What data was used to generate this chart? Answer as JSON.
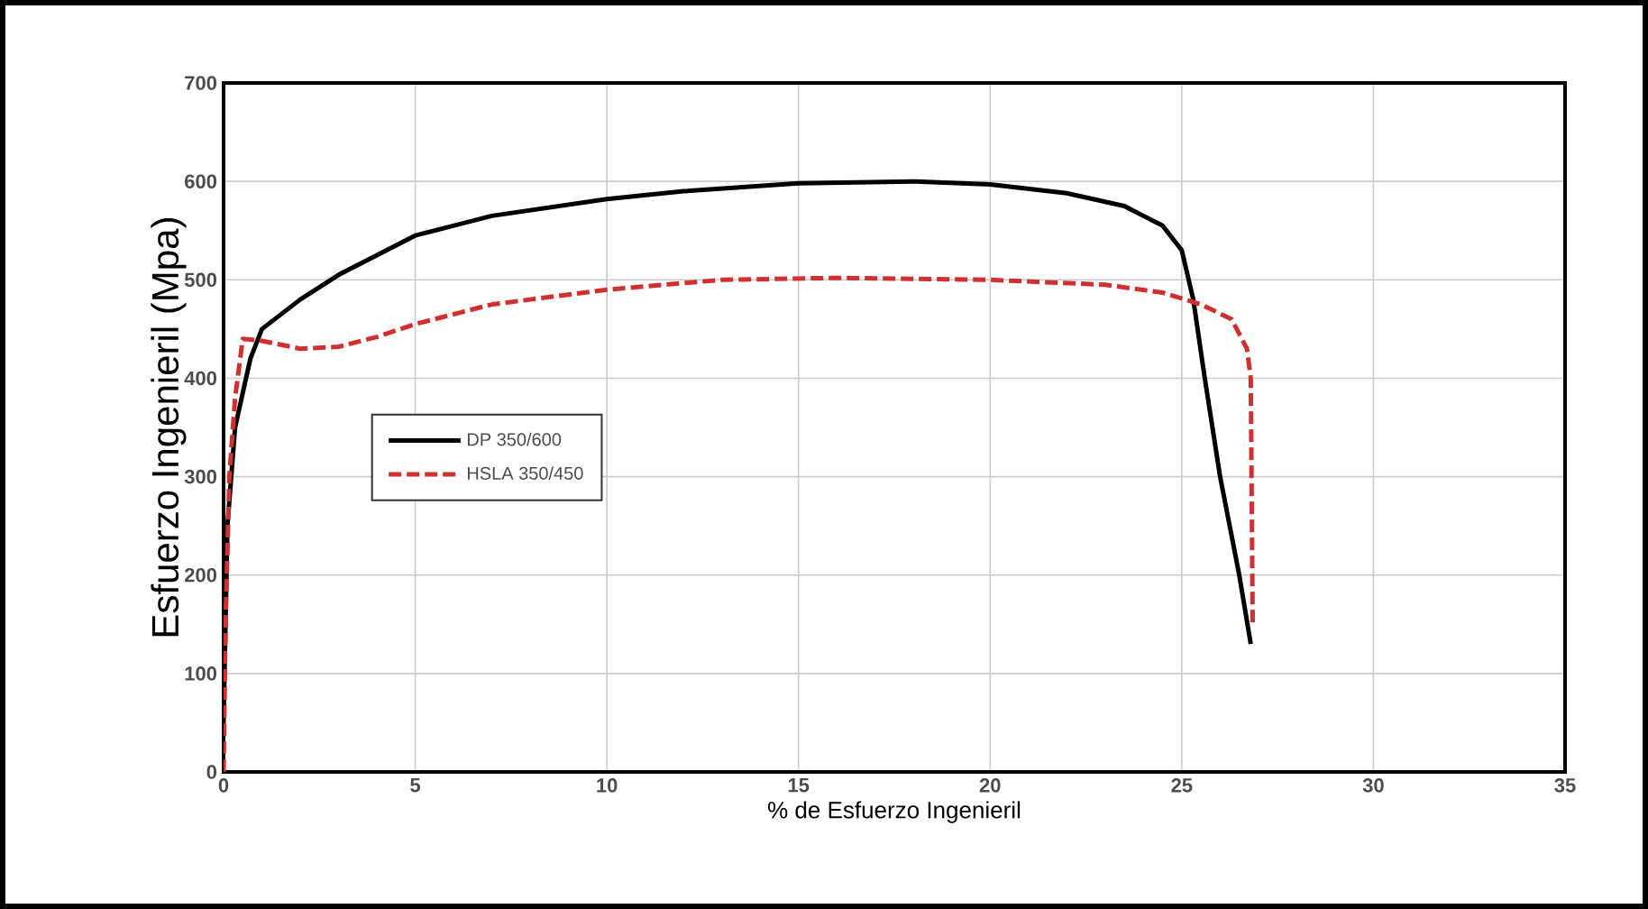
{
  "chart_data": {
    "type": "line",
    "xlabel": "% de Esfuerzo Ingenieril",
    "ylabel": "Esfuerzo Ingenieril (Mpa)",
    "xlim": [
      0,
      35
    ],
    "ylim": [
      0,
      700
    ],
    "xticks": [
      0,
      5,
      10,
      15,
      20,
      25,
      30,
      35
    ],
    "yticks": [
      0,
      100,
      200,
      300,
      400,
      500,
      600,
      700
    ],
    "grid": true,
    "legend": "left",
    "series": [
      {
        "name": "DP 350/600",
        "color": "#000000",
        "line_style": "solid",
        "x": [
          0,
          0.1,
          0.3,
          0.7,
          1,
          2,
          3,
          4,
          5,
          7,
          10,
          12,
          15,
          18,
          20,
          22,
          23.5,
          24.5,
          25,
          25.3,
          25.6,
          26,
          26.5,
          26.8
        ],
        "values": [
          50,
          250,
          350,
          420,
          450,
          480,
          505,
          525,
          545,
          565,
          582,
          590,
          598,
          600,
          597,
          588,
          575,
          555,
          530,
          480,
          400,
          300,
          200,
          130
        ]
      },
      {
        "name": "HSLA 350/450",
        "color": "#d03030",
        "line_style": "dashed",
        "x": [
          0,
          0.05,
          0.15,
          0.3,
          0.5,
          1,
          2,
          3,
          4,
          5,
          7,
          10,
          13,
          16,
          20,
          23,
          24.5,
          25.5,
          26.3,
          26.7,
          26.8,
          26.85
        ],
        "values": [
          0,
          150,
          300,
          380,
          440,
          438,
          430,
          432,
          442,
          455,
          475,
          490,
          500,
          502,
          500,
          495,
          487,
          475,
          460,
          430,
          400,
          150
        ]
      }
    ]
  }
}
